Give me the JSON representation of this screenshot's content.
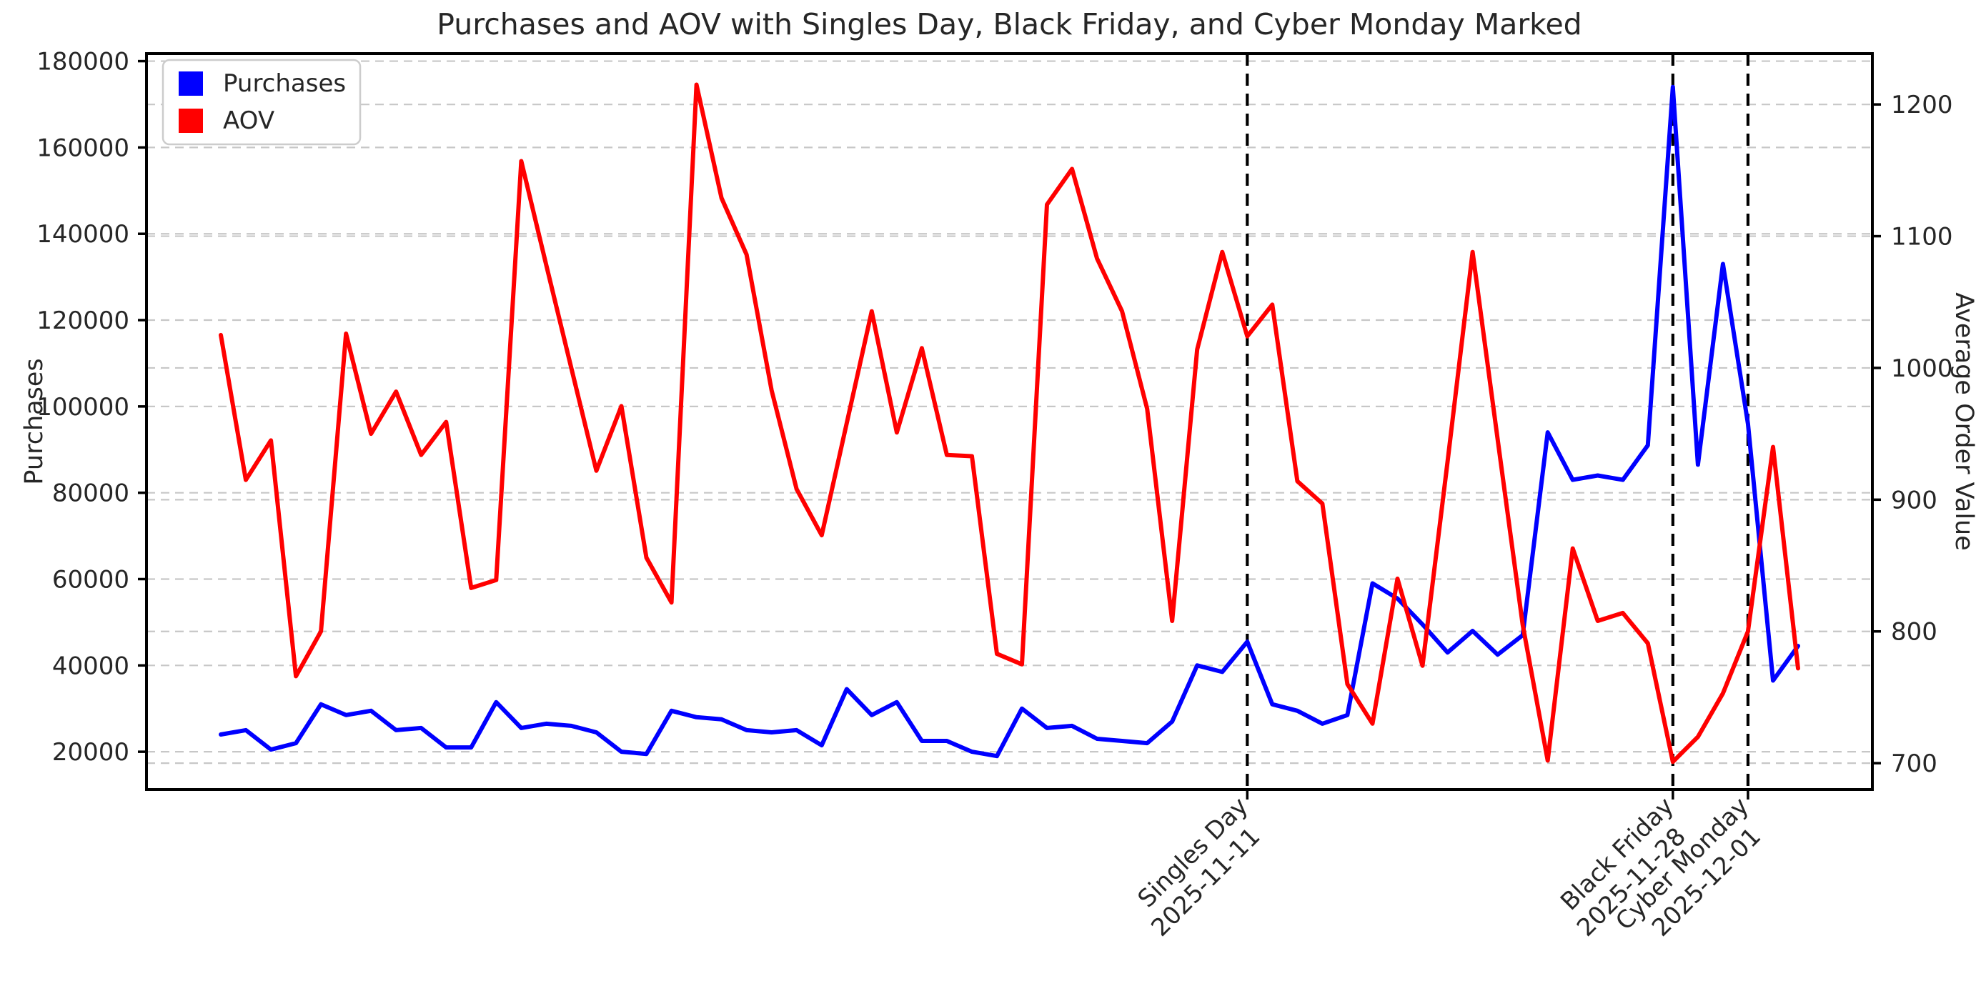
{
  "title": "Purchases and AOV with Singles Day, Black Friday, and Cyber Monday Marked",
  "legend": {
    "position": "upper left",
    "items": [
      {
        "label": "Purchases",
        "color": "#0000ff"
      },
      {
        "label": "AOV",
        "color": "#ff0000"
      }
    ]
  },
  "chart_data": {
    "type": "line",
    "title": "Purchases and AOV with Singles Day, Black Friday, and Cyber Monday Marked",
    "grid": true,
    "x": [
      "2025-10-01",
      "2025-10-02",
      "2025-10-03",
      "2025-10-04",
      "2025-10-05",
      "2025-10-06",
      "2025-10-07",
      "2025-10-08",
      "2025-10-09",
      "2025-10-10",
      "2025-10-11",
      "2025-10-12",
      "2025-10-13",
      "2025-10-14",
      "2025-10-15",
      "2025-10-16",
      "2025-10-17",
      "2025-10-18",
      "2025-10-19",
      "2025-10-20",
      "2025-10-21",
      "2025-10-22",
      "2025-10-23",
      "2025-10-24",
      "2025-10-25",
      "2025-10-26",
      "2025-10-27",
      "2025-10-28",
      "2025-10-29",
      "2025-10-30",
      "2025-10-31",
      "2025-11-01",
      "2025-11-02",
      "2025-11-03",
      "2025-11-04",
      "2025-11-05",
      "2025-11-06",
      "2025-11-07",
      "2025-11-08",
      "2025-11-09",
      "2025-11-10",
      "2025-11-11",
      "2025-11-12",
      "2025-11-13",
      "2025-11-14",
      "2025-11-15",
      "2025-11-16",
      "2025-11-17",
      "2025-11-18",
      "2025-11-19",
      "2025-11-20",
      "2025-11-21",
      "2025-11-22",
      "2025-11-23",
      "2025-11-24",
      "2025-11-25",
      "2025-11-26",
      "2025-11-27",
      "2025-11-28",
      "2025-11-29",
      "2025-11-30",
      "2025-12-01",
      "2025-12-02",
      "2025-12-03"
    ],
    "series": [
      {
        "name": "Purchases",
        "axis": "left",
        "color": "#0000ff",
        "values": [
          24000,
          25000,
          20500,
          22000,
          31000,
          28500,
          29500,
          25000,
          25500,
          21000,
          21000,
          31500,
          25500,
          26500,
          26000,
          24500,
          20000,
          19500,
          29500,
          28000,
          27500,
          25000,
          24500,
          25000,
          21500,
          34500,
          28500,
          31500,
          22500,
          22500,
          20000,
          19000,
          30000,
          25500,
          26000,
          23000,
          22500,
          22000,
          27000,
          40000,
          38500,
          45500,
          31000,
          29500,
          26500,
          28500,
          59000,
          55500,
          49500,
          43000,
          48000,
          42500,
          47000,
          94000,
          83000,
          84000,
          83000,
          91000,
          174000,
          86500,
          133000,
          96000,
          36500,
          44500
        ]
      },
      {
        "name": "AOV",
        "axis": "right",
        "color": "#ff0000",
        "values": [
          1025,
          915,
          945,
          766,
          800,
          1026,
          950,
          982,
          934,
          959,
          833,
          839,
          1157,
          1078,
          1000,
          922,
          971,
          856,
          822,
          1215,
          1129,
          1086,
          983,
          908,
          873,
          958,
          1043,
          951,
          1015,
          934,
          933,
          783,
          775,
          1124,
          1151,
          1083,
          1043,
          969,
          808,
          1014,
          1088,
          1024,
          1048,
          914,
          897,
          760,
          730,
          840,
          774,
          929,
          1088,
          946,
          805,
          702,
          863,
          808,
          814,
          791,
          701,
          720,
          753,
          800,
          940,
          772
        ]
      }
    ],
    "left_axis": {
      "label": "Purchases",
      "ticks": [
        20000,
        40000,
        60000,
        80000,
        100000,
        120000,
        140000,
        160000,
        180000
      ],
      "lim": [
        11250,
        181750
      ]
    },
    "right_axis": {
      "label": "Average Order Value",
      "ticks": [
        700,
        800,
        900,
        1000,
        1100,
        1200
      ],
      "lim": [
        680,
        1238.6
      ]
    },
    "events": [
      {
        "label": "Singles Day",
        "date": "2025-11-11"
      },
      {
        "label": "Black Friday",
        "date": "2025-11-28"
      },
      {
        "label": "Cyber Monday",
        "date": "2025-12-01"
      }
    ]
  }
}
